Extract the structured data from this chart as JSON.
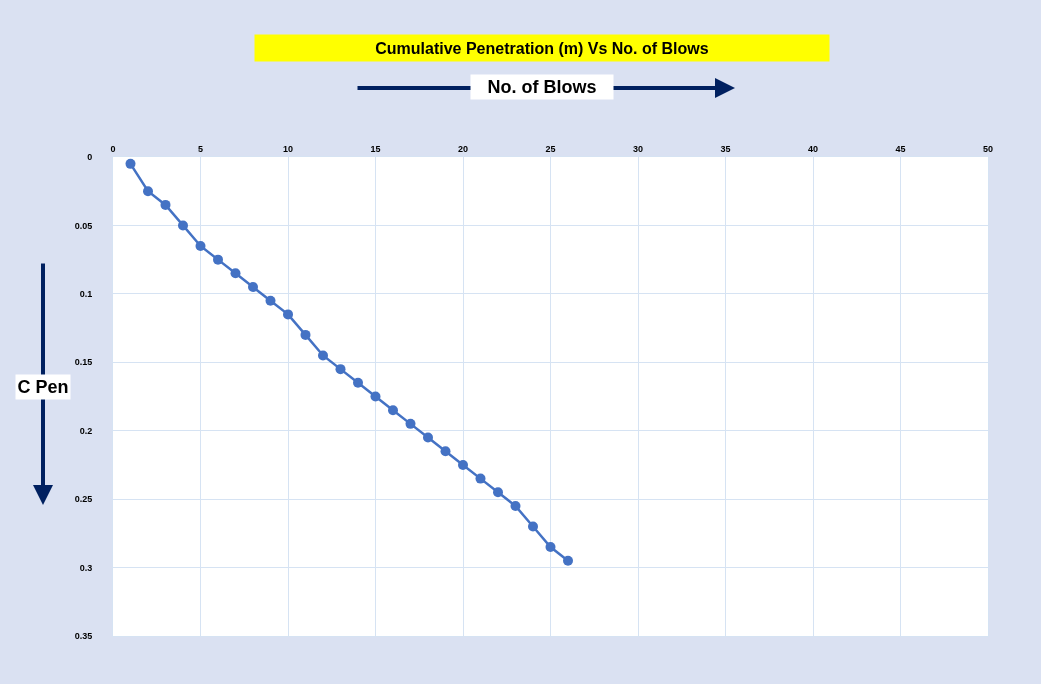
{
  "chart_data": {
    "type": "line",
    "title": "Cumulative Penetration (m) Vs No. of Blows",
    "xlabel": "No. of Blows",
    "ylabel": "C Pen",
    "x": [
      1,
      2,
      3,
      4,
      5,
      6,
      7,
      8,
      9,
      10,
      11,
      12,
      13,
      14,
      15,
      16,
      17,
      18,
      19,
      20,
      21,
      22,
      23,
      24,
      25,
      26
    ],
    "series": [
      {
        "color": "#4472c4",
        "values": [
          0.005,
          0.025,
          0.035,
          0.05,
          0.065,
          0.075,
          0.085,
          0.095,
          0.105,
          0.115,
          0.13,
          0.145,
          0.155,
          0.165,
          0.175,
          0.185,
          0.195,
          0.205,
          0.215,
          0.225,
          0.235,
          0.245,
          0.255,
          0.27,
          0.285,
          0.295
        ]
      }
    ],
    "xlim": [
      0,
      50
    ],
    "xticks": [
      0,
      5,
      10,
      15,
      20,
      25,
      30,
      35,
      40,
      45,
      50
    ],
    "ylim": [
      0.35,
      0
    ],
    "yticks": [
      0,
      0.05,
      0.1,
      0.15,
      0.2,
      0.25,
      0.3,
      0.35
    ],
    "grid": true,
    "marker": "circle",
    "line_style": "solid"
  }
}
